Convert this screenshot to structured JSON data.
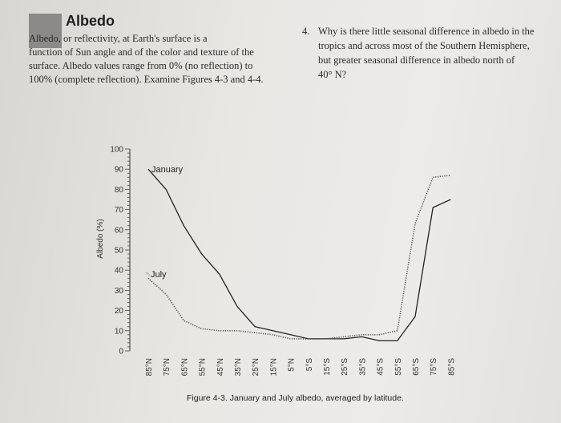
{
  "section": {
    "title": "Albedo",
    "intro_lines": [
      "Albedo, or reflectivity, at Earth's surface is a",
      "function of Sun angle and of the color and texture of the",
      "surface. Albedo values range from 0% (no reflection) to",
      "100% (complete reflection). Examine Figures 4-3 and 4-4."
    ]
  },
  "question": {
    "number": "4.",
    "lines": [
      "Why is there little seasonal difference in albedo in the",
      "tropics and across most of the Southern Hemisphere,",
      "but greater seasonal difference in albedo north of",
      "40° N?"
    ]
  },
  "chart_data": {
    "type": "line",
    "title": "",
    "caption": "Figure 4-3. January and July albedo, averaged by latitude.",
    "xlabel": "",
    "ylabel": "Albedo (%)",
    "ylim": [
      0,
      100
    ],
    "yticks": [
      0,
      10,
      20,
      30,
      40,
      50,
      60,
      70,
      80,
      90,
      100
    ],
    "categories": [
      "85°N",
      "75°N",
      "65°N",
      "55°N",
      "45°N",
      "35°N",
      "25°N",
      "15°N",
      "5°N",
      "5°S",
      "15°S",
      "25°S",
      "35°S",
      "45°S",
      "55°S",
      "65°S",
      "75°S",
      "85°S"
    ],
    "series": [
      {
        "name": "January",
        "style": "solid",
        "color": "#222222",
        "values": [
          90,
          80,
          62,
          48,
          38,
          22,
          12,
          10,
          8,
          6,
          6,
          6,
          7,
          5,
          5,
          17,
          71,
          75
        ]
      },
      {
        "name": "July",
        "style": "dotted",
        "color": "#555555",
        "values": [
          36,
          28,
          15,
          11,
          10,
          10,
          9,
          8,
          6,
          6,
          6,
          7,
          8,
          8,
          10,
          63,
          86,
          87
        ]
      }
    ],
    "grid": false,
    "legend": "labels on lines"
  }
}
